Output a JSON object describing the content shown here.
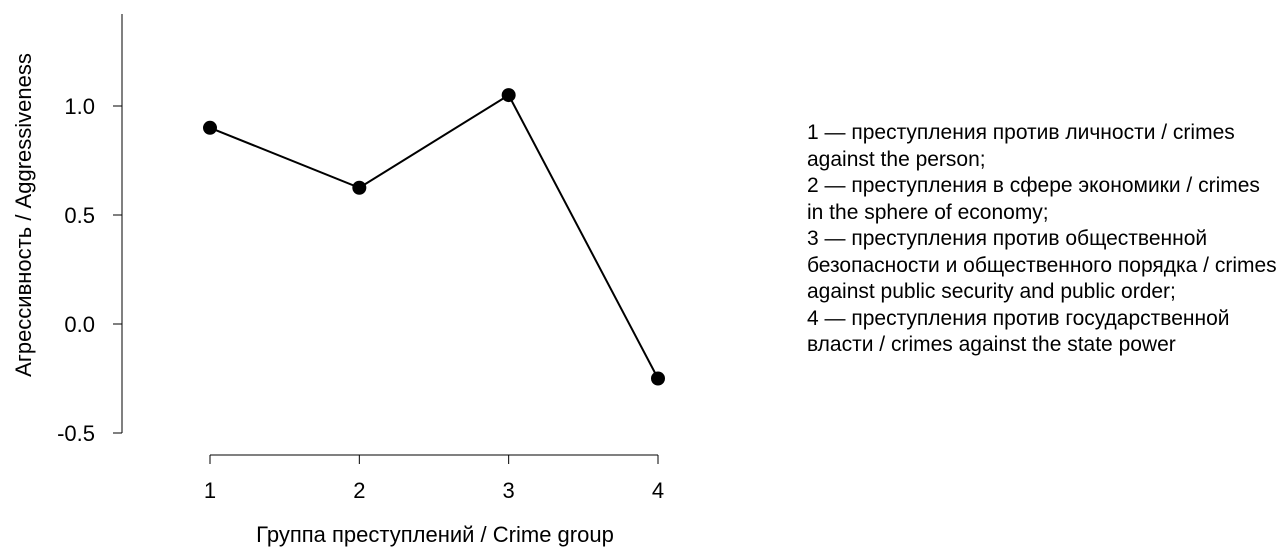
{
  "chart_data": {
    "type": "line",
    "x": [
      1,
      2,
      3,
      4
    ],
    "y": [
      0.9,
      0.625,
      1.05,
      -0.25
    ],
    "xticks": [
      "1",
      "2",
      "3",
      "4"
    ],
    "yticks": [
      "-0.5",
      "0.0",
      "0.5",
      "1.0"
    ],
    "xlabel": "Группа преступлений / Crime group",
    "ylabel": "Агрессивность / Aggressiveness",
    "ylim": [
      -0.5,
      1.0
    ],
    "xlim": [
      1,
      4
    ],
    "grid": false,
    "line_color": "#000000",
    "marker_color": "#000000"
  },
  "legend": {
    "items": [
      "1 — преступления против личности / crimes against the person;",
      "2 — преступления в сфере экономики / crimes in the sphere of economy;",
      "3 — преступления против общественной безопасности и общественного порядка / crimes against public security and public order;",
      "4 — преступления против государственной власти / crimes against the state power"
    ]
  }
}
